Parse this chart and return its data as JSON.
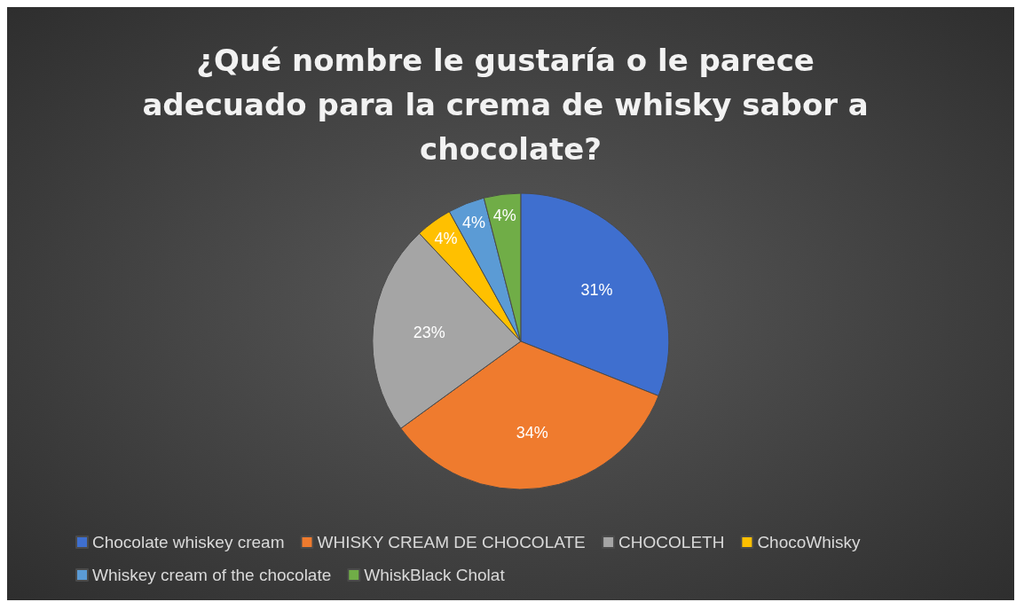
{
  "chart_data": {
    "type": "pie",
    "title": "¿Qué nombre le gustaría o le parece adecuado para la crema de whisky sabor a chocolate?",
    "categories": [
      "Chocolate whiskey cream",
      "WHISKY CREAM DE CHOCOLATE",
      "CHOCOLETH",
      "ChocoWhisky",
      "Whiskey cream of the chocolate",
      "WhiskBlack Cholat"
    ],
    "values": [
      31,
      34,
      23,
      4,
      4,
      4
    ],
    "colors": [
      "#3f6fcf",
      "#ef7b2e",
      "#a5a5a5",
      "#ffc000",
      "#5b9bd5",
      "#70ad47"
    ],
    "value_labels": [
      "31%",
      "34%",
      "23%",
      "4%",
      "4%",
      "4%"
    ],
    "legend": "bottom"
  }
}
